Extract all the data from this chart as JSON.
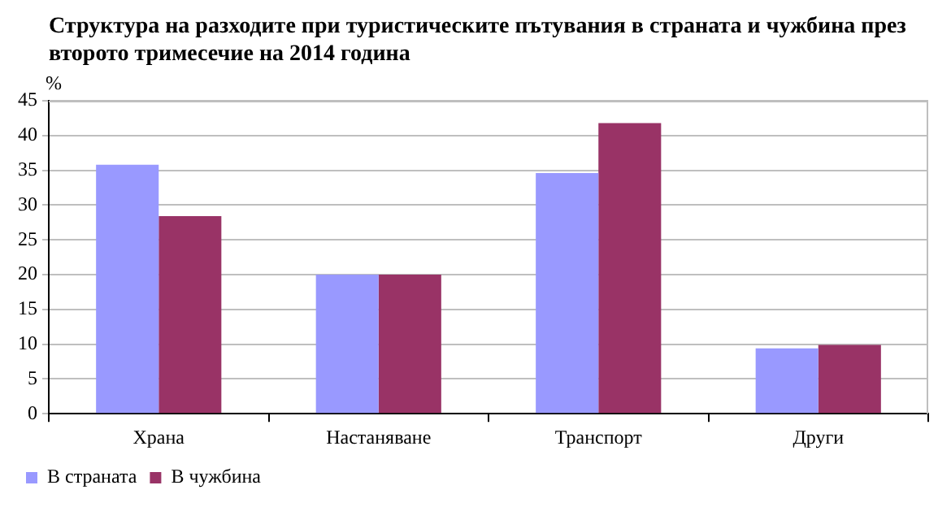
{
  "chart_data": {
    "type": "bar",
    "title": "Структура на разходите при туристическите пътувания в страната и чужбина през второто тримесечие на 2014 година",
    "ylabel": "%",
    "categories": [
      "Храна",
      "Настаняване",
      "Транспорт",
      "Други"
    ],
    "series": [
      {
        "name": "В страната",
        "color": "#9999ff",
        "values": [
          35.8,
          20,
          34.6,
          9.4
        ]
      },
      {
        "name": "В чужбина",
        "color": "#993366",
        "values": [
          28.4,
          20,
          41.8,
          9.9
        ]
      }
    ],
    "ylim": [
      0,
      45
    ],
    "yticks": [
      0,
      5,
      10,
      15,
      20,
      25,
      30,
      35,
      40,
      45
    ],
    "grid": "y",
    "legend": "bottom left"
  }
}
